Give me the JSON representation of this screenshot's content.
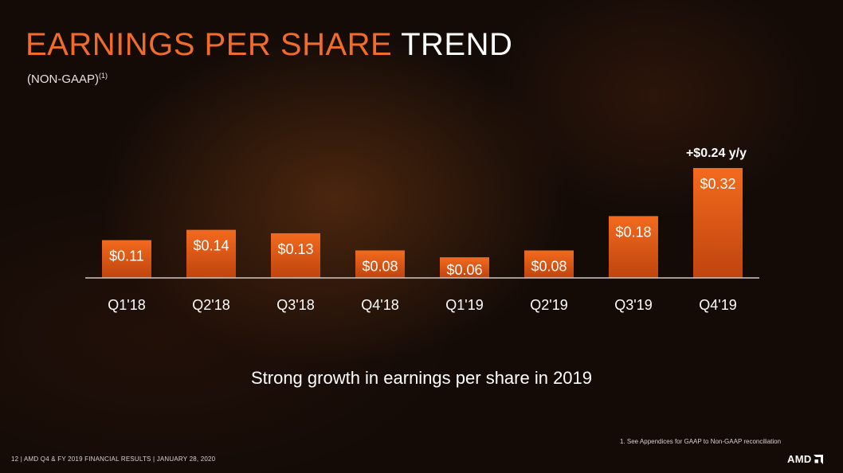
{
  "slide": {
    "title_accent": "EARNINGS PER SHARE",
    "title_plain": "TREND",
    "subtitle": "(NON-GAAP)",
    "subtitle_ref": "(1)",
    "tagline": "Strong growth in earnings per share in 2019",
    "footnote": "1.     See Appendices for GAAP to Non-GAAP reconciliation",
    "footer": "12  |  AMD Q4 & FY 2019 FINANCIAL RESULTS  |  JANUARY 28, 2020",
    "logo_text": "AMD"
  },
  "colors": {
    "accent": "#f06c2a",
    "bar_top": "#f26a1e",
    "bar_bottom": "#c0440e",
    "axis": "#cfc8c2"
  },
  "chart_data": {
    "type": "bar",
    "title": "EARNINGS PER SHARE TREND",
    "xlabel": "",
    "ylabel": "",
    "categories": [
      "Q1'18",
      "Q2'18",
      "Q3'18",
      "Q4'18",
      "Q1'19",
      "Q2'19",
      "Q3'19",
      "Q4'19"
    ],
    "values": [
      0.11,
      0.14,
      0.13,
      0.08,
      0.06,
      0.08,
      0.18,
      0.32
    ],
    "value_labels": [
      "$0.11",
      "$0.14",
      "$0.13",
      "$0.08",
      "$0.06",
      "$0.08",
      "$0.18",
      "$0.32"
    ],
    "ylim": [
      0,
      0.32
    ],
    "grid": false,
    "annotations": [
      {
        "category": "Q4'19",
        "text": "+$0.24 y/y"
      }
    ]
  }
}
